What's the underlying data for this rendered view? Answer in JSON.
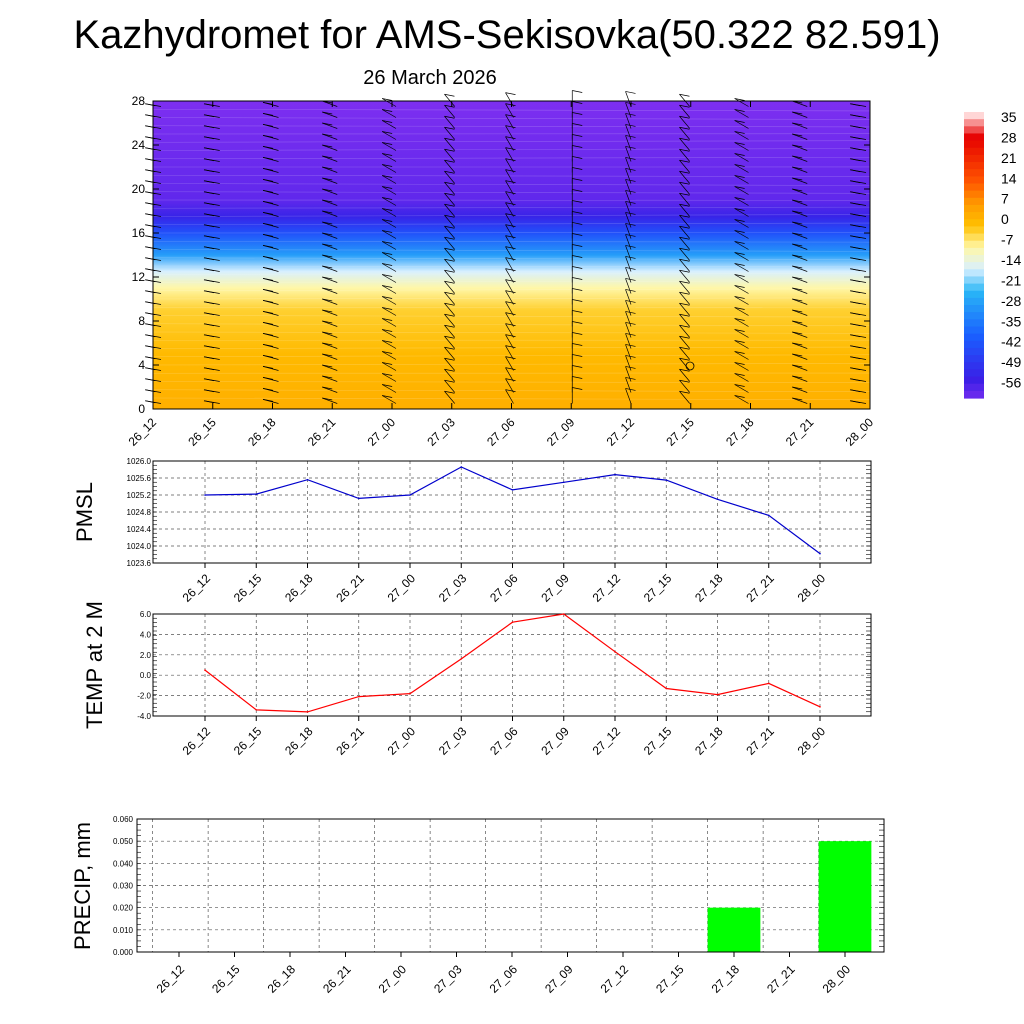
{
  "title": "Kazhydromet for AMS-Sekisovka(50.322 82.591)",
  "subtitle": "26 March 2026",
  "chart_data": [
    {
      "type": "heatmap",
      "name": "cross-section",
      "ylim": [
        0,
        28
      ],
      "yticks": [
        0,
        4,
        8,
        12,
        16,
        20,
        24,
        28
      ],
      "x_ticks": [
        "26_12",
        "26_15",
        "26_18",
        "26_21",
        "27_00",
        "27_03",
        "27_06",
        "27_09",
        "27_12",
        "27_15",
        "27_18",
        "27_21",
        "28_00"
      ],
      "colorbar": {
        "labels": [
          "35",
          "28",
          "21",
          "14",
          "7",
          "0",
          "-7",
          "-14",
          "-21",
          "-28",
          "-35",
          "-42",
          "-49",
          "-56"
        ],
        "stops": [
          {
            "v": 35,
            "color": "#ffd6d6"
          },
          {
            "v": 28,
            "color": "#e60000"
          },
          {
            "v": 14,
            "color": "#ff5500"
          },
          {
            "v": 7,
            "color": "#ff9900"
          },
          {
            "v": 0,
            "color": "#ffc000"
          },
          {
            "v": -7,
            "color": "#fff7a8"
          },
          {
            "v": -14,
            "color": "#d8f0ff"
          },
          {
            "v": -21,
            "color": "#29b6f6"
          },
          {
            "v": -35,
            "color": "#1a5fff"
          },
          {
            "v": -49,
            "color": "#3a1fe6"
          },
          {
            "v": -56,
            "color": "#7d2ff0"
          }
        ]
      },
      "vertical_profile": [
        {
          "level": 0,
          "value": 3
        },
        {
          "level": 5,
          "value": 1
        },
        {
          "level": 9,
          "value": -2
        },
        {
          "level": 11,
          "value": -7
        },
        {
          "level": 12.5,
          "value": -14
        },
        {
          "level": 14,
          "value": -25
        },
        {
          "level": 16,
          "value": -38
        },
        {
          "level": 17.5,
          "value": -48
        },
        {
          "level": 19,
          "value": -53
        },
        {
          "level": 28,
          "value": -57
        }
      ],
      "wind_direction_deg": [
        280,
        280,
        285,
        290,
        300,
        320,
        330,
        0,
        340,
        320,
        300,
        290,
        280
      ]
    },
    {
      "type": "line",
      "name": "pmsl",
      "ylabel": "PMSL",
      "ylim": [
        1023.6,
        1026.0
      ],
      "yticks": [
        "1023.6",
        "1024.0",
        "1024.4",
        "1024.8",
        "1025.2",
        "1025.6",
        "1026.0"
      ],
      "categories": [
        "26_12",
        "26_15",
        "26_18",
        "26_21",
        "27_00",
        "27_03",
        "27_06",
        "27_09",
        "27_12",
        "27_15",
        "27_18",
        "27_21",
        "28_00"
      ],
      "values": [
        1025.2,
        1025.22,
        1025.56,
        1025.12,
        1025.2,
        1025.86,
        1025.32,
        1025.5,
        1025.68,
        1025.55,
        1025.1,
        1024.72,
        1023.82
      ],
      "color": "#0000cc"
    },
    {
      "type": "line",
      "name": "temp",
      "ylabel": "TEMP at 2 M",
      "ylim": [
        -4.0,
        6.0
      ],
      "yticks": [
        "-4.0",
        "-2.0",
        "0.0",
        "2.0",
        "4.0",
        "6.0"
      ],
      "categories": [
        "26_12",
        "26_15",
        "26_18",
        "26_21",
        "27_00",
        "27_03",
        "27_06",
        "27_09",
        "27_12",
        "27_15",
        "27_18",
        "27_21",
        "28_00"
      ],
      "values": [
        0.5,
        -3.4,
        -3.6,
        -2.1,
        -1.8,
        1.6,
        5.2,
        6.0,
        2.3,
        -1.3,
        -1.9,
        -0.8,
        -3.1
      ],
      "color": "#ff0000"
    },
    {
      "type": "bar",
      "name": "precip",
      "ylabel": "PRECIP, mm",
      "ylim": [
        0,
        0.06
      ],
      "yticks": [
        "0.000",
        "0.010",
        "0.020",
        "0.030",
        "0.040",
        "0.050",
        "0.060"
      ],
      "categories": [
        "26_12",
        "26_15",
        "26_18",
        "26_21",
        "27_00",
        "27_03",
        "27_06",
        "27_09",
        "27_12",
        "27_15",
        "27_18",
        "27_21",
        "28_00"
      ],
      "values": [
        0,
        0,
        0,
        0,
        0,
        0,
        0,
        0,
        0,
        0,
        0.02,
        0,
        0.05
      ],
      "color": "#00ff00"
    }
  ]
}
